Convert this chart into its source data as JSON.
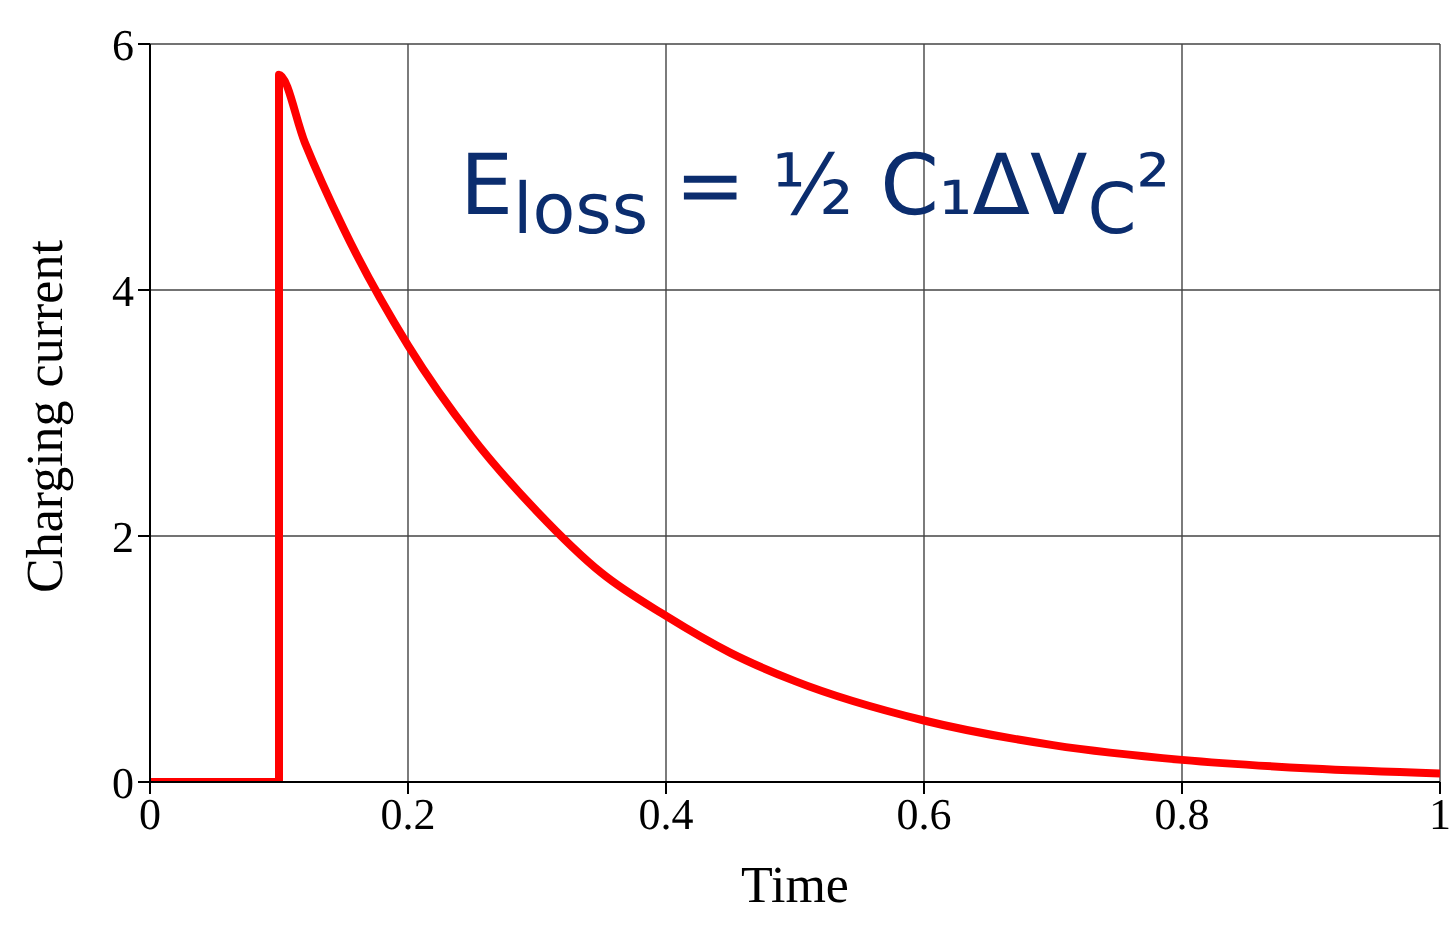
{
  "chart_data": {
    "type": "line",
    "xlabel": "Time",
    "ylabel": "Charging current",
    "annotations": [
      "E$_{loss}$ = ½ C₁ΔV$_{C}$²"
    ],
    "x": [
      0,
      0.1,
      0.1,
      0.12,
      0.15,
      0.2,
      0.25,
      0.3,
      0.35,
      0.4,
      0.45,
      0.5,
      0.6,
      0.7,
      0.8,
      0.9,
      1
    ],
    "series": [
      {
        "color": "#ff0000",
        "values": [
          0,
          0,
          5.75,
          5.2,
          4.5,
          3.55,
          2.8,
          2.2,
          1.7,
          1.35,
          1.05,
          0.82,
          0.5,
          0.3,
          0.18,
          0.11,
          0.07
        ]
      }
    ],
    "xlim": [
      0,
      1
    ],
    "xticks": [
      0,
      0.2,
      0.4,
      0.6,
      0.8,
      1
    ],
    "ylim": [
      0,
      6
    ],
    "yticks": [
      0,
      2,
      4,
      6
    ],
    "grid": true,
    "legend": false,
    "marker": "none",
    "line_style": "solid"
  }
}
